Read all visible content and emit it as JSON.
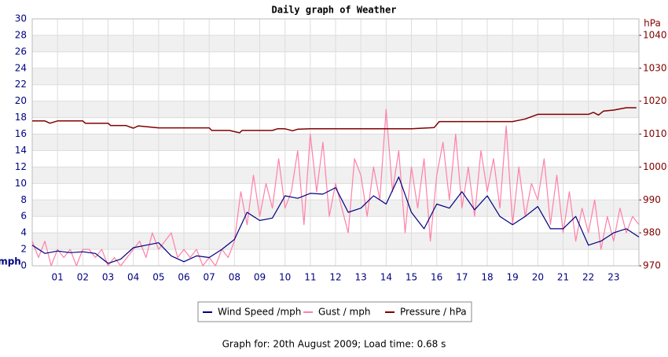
{
  "chart_data": {
    "type": "line",
    "title": "Daily graph of Weather",
    "ylabel": "mph",
    "y2label": "hPa",
    "xlim": [
      0,
      24
    ],
    "xticks": [
      {
        "value": 1,
        "label": "01"
      },
      {
        "value": 2,
        "label": "02"
      },
      {
        "value": 3,
        "label": "03"
      },
      {
        "value": 4,
        "label": "04"
      },
      {
        "value": 5,
        "label": "05"
      },
      {
        "value": 6,
        "label": "06"
      },
      {
        "value": 7,
        "label": "07"
      },
      {
        "value": 8,
        "label": "08"
      },
      {
        "value": 9,
        "label": "09"
      },
      10,
      11,
      12,
      13,
      14,
      15,
      16,
      17,
      18,
      19,
      20,
      21,
      22,
      23
    ],
    "ylim": [
      0,
      30
    ],
    "yticks": [
      0,
      2,
      4,
      6,
      8,
      10,
      12,
      14,
      16,
      18,
      20,
      22,
      24,
      26,
      28,
      30
    ],
    "y2lim": [
      970,
      1045
    ],
    "y2ticks": [
      970,
      980,
      990,
      1000,
      1010,
      1020,
      1030,
      1040
    ],
    "grid": true,
    "series": [
      {
        "name": "Gust / mph",
        "color": "#ff80a8",
        "x": [
          0,
          0.25,
          0.5,
          0.75,
          1,
          1.25,
          1.5,
          1.75,
          2,
          2.25,
          2.5,
          2.75,
          3,
          3.25,
          3.5,
          3.75,
          4,
          4.25,
          4.5,
          4.75,
          5,
          5.25,
          5.5,
          5.75,
          6,
          6.25,
          6.5,
          6.75,
          7,
          7.25,
          7.5,
          7.75,
          8,
          8.25,
          8.5,
          8.75,
          9,
          9.25,
          9.5,
          9.75,
          10,
          10.25,
          10.5,
          10.75,
          11,
          11.25,
          11.5,
          11.75,
          12,
          12.25,
          12.5,
          12.75,
          13,
          13.25,
          13.5,
          13.75,
          14,
          14.25,
          14.5,
          14.75,
          15,
          15.25,
          15.5,
          15.75,
          16,
          16.25,
          16.5,
          16.75,
          17,
          17.25,
          17.5,
          17.75,
          18,
          18.25,
          18.5,
          18.75,
          19,
          19.25,
          19.5,
          19.75,
          20,
          20.25,
          20.5,
          20.75,
          21,
          21.25,
          21.5,
          21.75,
          22,
          22.25,
          22.5,
          22.75,
          23,
          23.25,
          23.5,
          23.75,
          24
        ],
        "values": [
          3,
          1,
          3,
          0,
          2,
          1,
          2,
          0,
          2,
          2,
          1,
          2,
          0,
          1,
          0,
          1,
          2,
          3,
          1,
          4,
          2,
          3,
          4,
          1,
          2,
          1,
          2,
          0,
          1,
          0,
          2,
          1,
          3,
          9,
          5,
          11,
          6,
          10,
          7,
          13,
          7,
          9,
          14,
          5,
          16,
          9,
          15,
          6,
          10,
          7,
          4,
          13,
          11,
          6,
          12,
          8,
          19,
          9,
          14,
          4,
          12,
          7,
          13,
          3,
          11,
          15,
          8,
          16,
          7,
          12,
          6,
          14,
          9,
          13,
          7,
          17,
          5,
          12,
          6,
          10,
          8,
          13,
          5,
          11,
          4,
          9,
          3,
          7,
          4,
          8,
          2,
          6,
          3,
          7,
          4,
          6,
          5
        ]
      },
      {
        "name": "Wind Speed /mph",
        "color": "#000080",
        "x": [
          0,
          0.5,
          1,
          1.5,
          2,
          2.5,
          3,
          3.5,
          4,
          4.5,
          5,
          5.5,
          6,
          6.5,
          7,
          7.5,
          8,
          8.5,
          9,
          9.5,
          10,
          10.5,
          11,
          11.5,
          12,
          12.5,
          13,
          13.5,
          14,
          14.5,
          15,
          15.5,
          16,
          16.5,
          17,
          17.5,
          18,
          18.5,
          19,
          19.5,
          20,
          20.5,
          21,
          21.5,
          22,
          22.5,
          23,
          23.5,
          24
        ],
        "values": [
          2.5,
          1.5,
          1.8,
          1.6,
          1.7,
          1.5,
          0.3,
          0.8,
          2.2,
          2.5,
          2.8,
          1.2,
          0.5,
          1.2,
          1.0,
          2.0,
          3.2,
          6.5,
          5.5,
          5.8,
          8.5,
          8.2,
          8.8,
          8.7,
          9.5,
          6.5,
          7.0,
          8.5,
          7.5,
          10.8,
          6.5,
          4.5,
          7.5,
          7.0,
          9.0,
          6.8,
          8.5,
          6.0,
          5.0,
          6.0,
          7.2,
          4.5,
          4.5,
          6.0,
          2.5,
          3.0,
          4.0,
          4.5,
          3.5
        ]
      },
      {
        "name": "Pressure / hPa",
        "color": "#800000",
        "axis": "y2",
        "x": [
          0,
          0.5,
          0.7,
          1,
          2,
          2.1,
          3,
          3.1,
          3.7,
          4,
          4.2,
          5,
          7,
          7.1,
          7.8,
          8.2,
          8.3,
          9.5,
          9.7,
          10,
          10.3,
          10.5,
          11,
          11.3,
          12,
          13,
          14,
          15,
          15.9,
          16.1,
          17,
          18,
          19,
          19.5,
          20,
          21,
          22,
          22.2,
          22.4,
          22.6,
          23,
          23.5,
          23.9
        ],
        "values": [
          1014,
          1014,
          1013.3,
          1014,
          1014,
          1013.3,
          1013.3,
          1012.6,
          1012.6,
          1011.8,
          1012.5,
          1011.9,
          1011.9,
          1011.1,
          1011.1,
          1010.4,
          1011.1,
          1011.1,
          1011.6,
          1011.6,
          1011,
          1011.5,
          1011.6,
          1011.6,
          1011.6,
          1011.6,
          1011.6,
          1011.6,
          1012,
          1013.8,
          1013.8,
          1013.8,
          1013.8,
          1014.6,
          1016,
          1016,
          1016,
          1016.6,
          1015.8,
          1017,
          1017.3,
          1018,
          1018
        ]
      }
    ],
    "legend_order": [
      1,
      0,
      2
    ],
    "footer": "Graph for: 20th August 2009; Load time: 0.68 s"
  }
}
